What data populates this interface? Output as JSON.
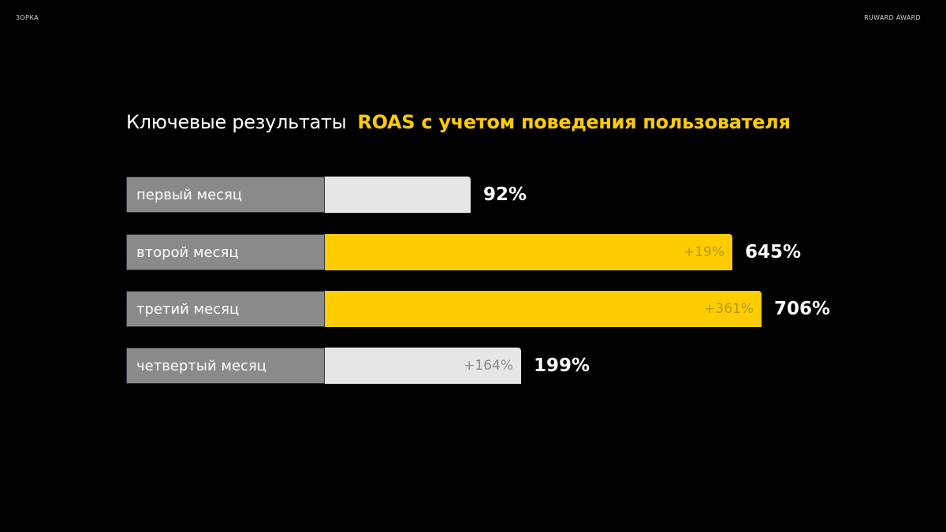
{
  "header": {
    "left": "ЗОРКА",
    "right": "RUWARD AWARD"
  },
  "title": {
    "lead": "Ключевые результаты",
    "accent": "ROAS с учетом поведения пользователя"
  },
  "colors": {
    "background": "#000000",
    "accent": "#ffcc00",
    "label_bg": "#8a8a8a",
    "light_bar": "#e6e6e6",
    "delta_on_light": "#8a8a8a",
    "delta_on_yellow": "#b89a00"
  },
  "chart_data": {
    "type": "bar",
    "orientation": "horizontal",
    "categories": [
      "первый месяц",
      "второй месяц",
      "третий месяц",
      "четвертый месяц"
    ],
    "values": [
      92,
      645,
      706,
      199
    ],
    "value_labels": [
      "92%",
      "645%",
      "706%",
      "199%"
    ],
    "deltas": [
      "",
      "+19%",
      "+361%",
      "+164%"
    ],
    "highlight": [
      false,
      true,
      true,
      false
    ],
    "title": "ROAS с учетом поведения пользователя",
    "xlabel": "",
    "ylabel": ""
  }
}
